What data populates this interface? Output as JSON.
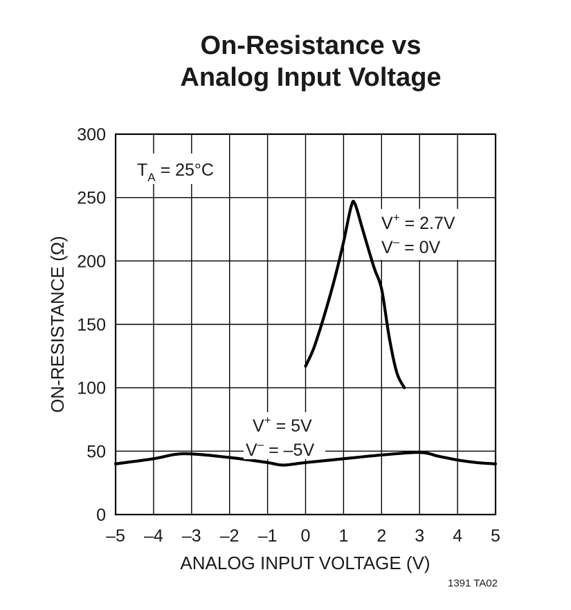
{
  "chart_data": {
    "type": "line",
    "title": "On-Resistance vs\nAnalog Input Voltage",
    "title_lines": [
      "On-Resistance vs",
      "Analog Input Voltage"
    ],
    "xlabel": "ANALOG INPUT VOLTAGE (V)",
    "ylabel": "ON-RESISTANCE (Ω)",
    "xlim": [
      -5,
      5
    ],
    "ylim": [
      0,
      300
    ],
    "x_ticks": [
      -5,
      -4,
      -3,
      -2,
      -1,
      0,
      1,
      2,
      3,
      4,
      5
    ],
    "x_tick_labels": [
      "–5",
      "–4",
      "–3",
      "–2",
      "–1",
      "0",
      "1",
      "2",
      "3",
      "4",
      "5"
    ],
    "y_ticks": [
      0,
      50,
      100,
      150,
      200,
      250,
      300
    ],
    "y_tick_labels": [
      "0",
      "50",
      "100",
      "150",
      "200",
      "250",
      "300"
    ],
    "grid": true,
    "condition": {
      "main": "T",
      "sub": "A",
      "rest": " = 25°C"
    },
    "series": [
      {
        "annotation": {
          "line1": {
            "main": "V",
            "sup": "+",
            "rest": " = 2.7V"
          },
          "line2": {
            "main": "V",
            "sup": "–",
            "rest": " = 0V"
          }
        },
        "x": [
          0.0,
          0.2,
          0.4,
          0.6,
          0.8,
          1.0,
          1.2,
          1.3,
          1.5,
          1.8,
          2.0,
          2.2,
          2.4,
          2.6
        ],
        "y": [
          117,
          130,
          148,
          168,
          190,
          215,
          243,
          245,
          225,
          195,
          178,
          140,
          112,
          100
        ]
      },
      {
        "annotation": {
          "line1": {
            "main": "V",
            "sup": "+",
            "rest": " = 5V"
          },
          "line2": {
            "main": "V",
            "sup": "–",
            "rest": " = –5V"
          }
        },
        "x": [
          -5,
          -4,
          -3.2,
          -2,
          -1,
          -0.6,
          0,
          1,
          2,
          3,
          3.5,
          4,
          4.5,
          5
        ],
        "y": [
          40,
          44,
          48,
          45,
          41,
          39,
          41,
          44,
          47,
          49,
          46,
          43,
          41,
          40
        ]
      }
    ],
    "footnote": "1391 TA02"
  }
}
